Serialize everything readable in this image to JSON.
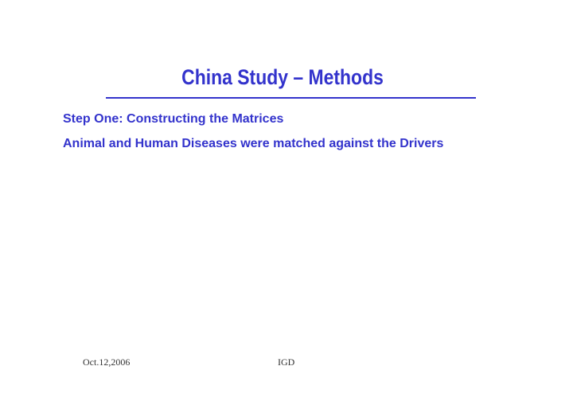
{
  "slide": {
    "title": "China Study – Methods",
    "lines": [
      "Step One:  Constructing the Matrices",
      "Animal and Human Diseases were matched against the Drivers"
    ],
    "footer_left": "Oct.12,2006",
    "footer_center": "IGD",
    "accent": "#3333cc"
  }
}
